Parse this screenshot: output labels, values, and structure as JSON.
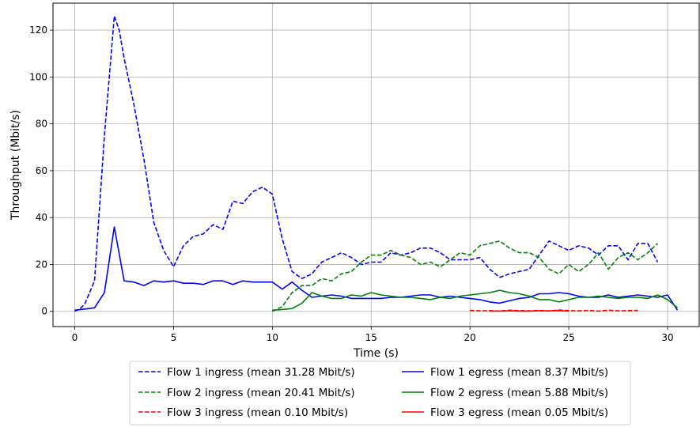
{
  "chart_data": {
    "type": "line",
    "title": "",
    "xlabel": "Time (s)",
    "ylabel": "Throughput (Mbit/s)",
    "xlim": [
      -1.1,
      31.6
    ],
    "ylim": [
      -6.5,
      131.5
    ],
    "xticks": [
      0,
      5,
      10,
      15,
      20,
      25,
      30
    ],
    "yticks": [
      0,
      20,
      40,
      60,
      80,
      100,
      120
    ],
    "grid": true,
    "legend_position": "bottom-center",
    "series": [
      {
        "name": "Flow 1 ingress (mean 31.28 Mbit/s)",
        "color": "#0000ff",
        "dash": "dashed",
        "x": [
          0,
          0.25,
          0.5,
          1.0,
          1.5,
          2.0,
          2.25,
          2.5,
          3.0,
          3.5,
          4.0,
          4.5,
          5.0,
          5.5,
          6.0,
          6.5,
          7.0,
          7.5,
          8.0,
          8.5,
          9.0,
          9.5,
          10.0,
          10.5,
          11.0,
          11.5,
          12.0,
          12.5,
          13.0,
          13.5,
          14.0,
          14.5,
          15.0,
          15.5,
          16.0,
          16.5,
          17.0,
          17.5,
          18.0,
          18.5,
          19.0,
          19.5,
          20.0,
          20.5,
          21.0,
          21.5,
          22.0,
          22.5,
          23.0,
          23.5,
          24.0,
          24.5,
          25.0,
          25.5,
          26.0,
          26.5,
          27.0,
          27.5,
          28.0,
          28.5,
          29.0,
          29.5
        ],
        "y": [
          0,
          1,
          3,
          13,
          75,
          126,
          120,
          108,
          88,
          65,
          38,
          26,
          19,
          28,
          32,
          33,
          37,
          35,
          47,
          46,
          51,
          53,
          50,
          31,
          17,
          14,
          16,
          21,
          23,
          25,
          23,
          20,
          21,
          21,
          25,
          24,
          25,
          27,
          27,
          25,
          22,
          22,
          22,
          23,
          18,
          14.5,
          16,
          17,
          18,
          24,
          30,
          28,
          26,
          28,
          27,
          24,
          28,
          28,
          22,
          29,
          29,
          21
        ]
      },
      {
        "name": "Flow 2 ingress (mean 20.41 Mbit/s)",
        "color": "#008000",
        "dash": "dashed",
        "x": [
          10.0,
          10.5,
          11.0,
          11.5,
          12.0,
          12.5,
          13.0,
          13.5,
          14.0,
          14.5,
          15.0,
          15.5,
          16.0,
          16.5,
          17.0,
          17.5,
          18.0,
          18.5,
          19.0,
          19.5,
          20.0,
          20.5,
          21.0,
          21.5,
          22.0,
          22.5,
          23.0,
          23.5,
          24.0,
          24.5,
          25.0,
          25.5,
          26.0,
          26.5,
          27.0,
          27.5,
          28.0,
          28.5,
          29.0,
          29.5
        ],
        "y": [
          0,
          2,
          8,
          11,
          11,
          14,
          13,
          16,
          17,
          21,
          24,
          24,
          26,
          24,
          23,
          20,
          21,
          19,
          22,
          25,
          24,
          28,
          29,
          30,
          27,
          25,
          25,
          23,
          18,
          16,
          20,
          17,
          20,
          25,
          18,
          23,
          25,
          22,
          25,
          29
        ]
      },
      {
        "name": "Flow 3 ingress (mean 0.10 Mbit/s)",
        "color": "#ff0000",
        "dash": "dashed",
        "x": [
          20.0,
          20.5,
          21.0,
          21.5,
          22.0,
          22.5,
          23.0,
          23.5,
          24.0,
          24.5,
          25.0,
          25.5,
          26.0,
          26.5,
          27.0,
          27.5,
          28.0,
          28.5
        ],
        "y": [
          0.4,
          0.2,
          0.3,
          0.1,
          0.5,
          0.3,
          0.2,
          0.4,
          0.1,
          0.6,
          0.3,
          0.2,
          0.4,
          0.1,
          0.5,
          0.2,
          0.3,
          0.4
        ]
      },
      {
        "name": "Flow 1 egress (mean 8.37 Mbit/s)",
        "color": "#0000ff",
        "dash": "solid",
        "x": [
          0,
          0.5,
          1.0,
          1.5,
          2.0,
          2.5,
          3.0,
          3.5,
          4.0,
          4.5,
          5.0,
          5.5,
          6.0,
          6.5,
          7.0,
          7.5,
          8.0,
          8.5,
          9.0,
          9.5,
          10.0,
          10.5,
          11.0,
          11.5,
          12.0,
          12.5,
          13.0,
          13.5,
          14.0,
          14.5,
          15.0,
          15.5,
          16.0,
          16.5,
          17.0,
          17.5,
          18.0,
          18.5,
          19.0,
          19.5,
          20.0,
          20.5,
          21.0,
          21.5,
          22.0,
          22.5,
          23.0,
          23.5,
          24.0,
          24.5,
          25.0,
          25.5,
          26.0,
          26.5,
          27.0,
          27.5,
          28.0,
          28.5,
          29.0,
          29.5,
          30.0,
          30.5
        ],
        "y": [
          0.5,
          1,
          1.5,
          8,
          36,
          13,
          12.5,
          11,
          13,
          12.5,
          13,
          12,
          12,
          11.5,
          13,
          13,
          11.5,
          13,
          12.5,
          12.5,
          12.5,
          9.5,
          12.5,
          9,
          6,
          6.5,
          7,
          6.5,
          5.5,
          5.5,
          5.5,
          5.5,
          6,
          6,
          6.5,
          7,
          7,
          6,
          6.5,
          6,
          5.5,
          5,
          4,
          3.5,
          4.5,
          5.5,
          6,
          7.5,
          7.5,
          8,
          7.5,
          6.5,
          6,
          6,
          7,
          6,
          6.5,
          7,
          6.5,
          6,
          7,
          0.5
        ]
      },
      {
        "name": "Flow 2 egress (mean 5.88 Mbit/s)",
        "color": "#008000",
        "dash": "solid",
        "x": [
          10.0,
          10.5,
          11.0,
          11.5,
          12.0,
          12.5,
          13.0,
          13.5,
          14.0,
          14.5,
          15.0,
          15.5,
          16.0,
          16.5,
          17.0,
          17.5,
          18.0,
          18.5,
          19.0,
          19.5,
          20.0,
          20.5,
          21.0,
          21.5,
          22.0,
          22.5,
          23.0,
          23.5,
          24.0,
          24.5,
          25.0,
          25.5,
          26.0,
          26.5,
          27.0,
          27.5,
          28.0,
          28.5,
          29.0,
          29.5,
          30.0,
          30.5
        ],
        "y": [
          0.5,
          0.8,
          1.2,
          3.5,
          8,
          6.5,
          5.5,
          5.5,
          7,
          6.5,
          8,
          7,
          6.5,
          6,
          6,
          5.5,
          5,
          6,
          5.5,
          6.5,
          7,
          7.5,
          8,
          9,
          8,
          7.5,
          6.5,
          5,
          5,
          4,
          5,
          6,
          6,
          6.5,
          6,
          5.5,
          6,
          6,
          5.5,
          7,
          5,
          1.5
        ]
      },
      {
        "name": "Flow 3 egress (mean 0.05 Mbit/s)",
        "color": "#ff0000",
        "dash": "solid",
        "x": [
          21.0,
          21.5,
          22.0,
          22.5,
          23.0,
          23.5,
          24.0,
          24.5,
          25.0
        ],
        "y": [
          0.1,
          0.1,
          0.2,
          0.1,
          0.1,
          0.2,
          0.2,
          0.3,
          0.1
        ]
      }
    ]
  }
}
